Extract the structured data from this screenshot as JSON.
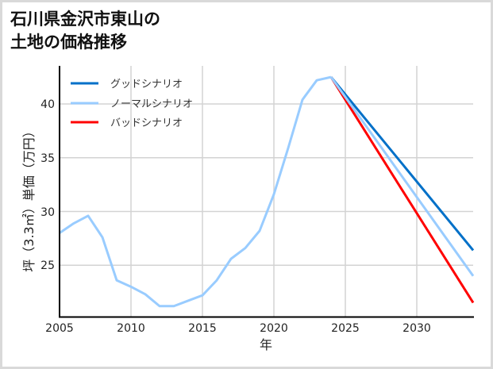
{
  "title_line1": "石川県金沢市東山の",
  "title_line2": "土地の価格推移",
  "chart_data": {
    "type": "line",
    "title": "石川県金沢市東山の土地の価格推移",
    "xlabel": "年",
    "ylabel": "坪（3.3㎡）単価（万円）",
    "xlim": [
      2005,
      2034
    ],
    "ylim": [
      20.1,
      43.5
    ],
    "xticks": [
      2005,
      2010,
      2015,
      2020,
      2025,
      2030
    ],
    "yticks": [
      25,
      30,
      35,
      40
    ],
    "grid": true,
    "legend_position": "upper left",
    "historical": {
      "x": [
        2005,
        2006,
        2007,
        2008,
        2009,
        2010,
        2011,
        2012,
        2013,
        2014,
        2015,
        2016,
        2017,
        2018,
        2019,
        2020,
        2021,
        2022,
        2023,
        2024
      ],
      "values": [
        28.0,
        28.9,
        29.6,
        27.6,
        23.6,
        23.0,
        22.3,
        21.2,
        21.2,
        21.7,
        22.2,
        23.6,
        25.6,
        26.6,
        28.2,
        31.6,
        35.9,
        40.4,
        42.2,
        42.5
      ]
    },
    "series": [
      {
        "name": "グッドシナリオ",
        "color": "#0070c8",
        "x": [
          2024,
          2034
        ],
        "values": [
          42.5,
          26.3
        ]
      },
      {
        "name": "ノーマルシナリオ",
        "color": "#99ccff",
        "x": [
          2024,
          2034
        ],
        "values": [
          42.5,
          23.9
        ]
      },
      {
        "name": "バッドシナリオ",
        "color": "#ff0000",
        "x": [
          2024,
          2034
        ],
        "values": [
          42.5,
          21.4
        ]
      }
    ]
  },
  "legend": [
    {
      "label": "グッドシナリオ",
      "color": "#0070c8"
    },
    {
      "label": "ノーマルシナリオ",
      "color": "#99ccff"
    },
    {
      "label": "バッドシナリオ",
      "color": "#ff0000"
    }
  ],
  "axes": {
    "x_ticks": [
      "2005",
      "2010",
      "2015",
      "2020",
      "2025",
      "2030"
    ],
    "y_ticks": [
      "25",
      "30",
      "35",
      "40"
    ],
    "xlabel": "年",
    "ylabel": "坪（3.3㎡）単価（万円）"
  }
}
